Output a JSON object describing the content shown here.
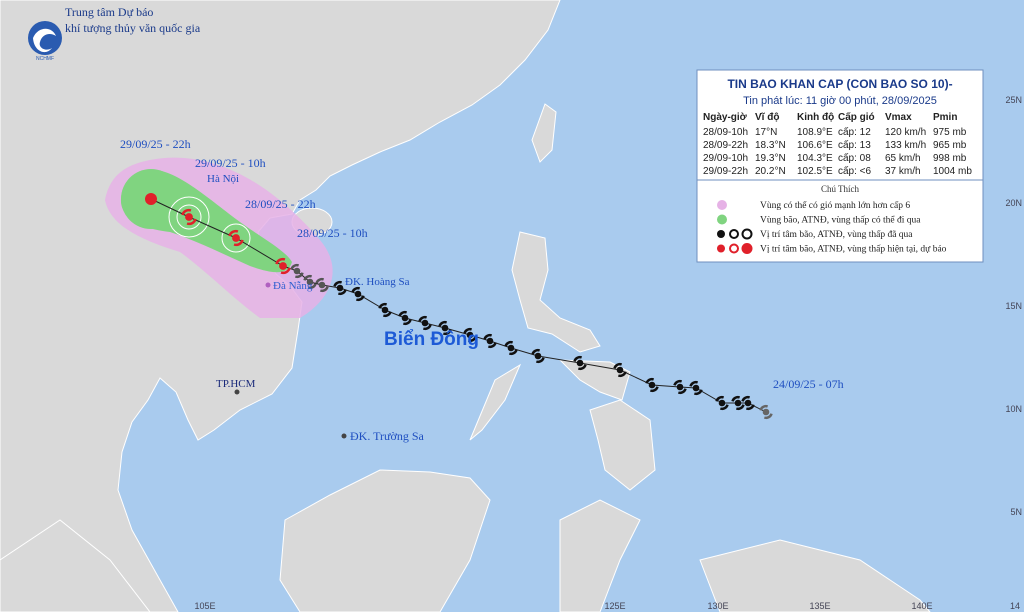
{
  "header": {
    "org_line1": "Trung tâm Dự báo",
    "org_line2": "khí tượng thủy văn quốc gia",
    "logo": "NCHMF"
  },
  "bulletin": {
    "title": "TIN BAO KHAN CAP (CON BAO SO 10)-",
    "issued": "Tin phát lúc: 11 giờ 00 phút, 28/09/2025",
    "columns": [
      "Ngày-giờ",
      "Vĩ độ",
      "Kinh độ",
      "Cấp gió",
      "Vmax",
      "Pmin"
    ],
    "rows": [
      [
        "28/09-10h",
        "17°N",
        "108.9°E",
        "cấp: 12",
        "120 km/h",
        "975 mb"
      ],
      [
        "28/09-22h",
        "18.3°N",
        "106.6°E",
        "cấp: 13",
        "133 km/h",
        "965 mb"
      ],
      [
        "29/09-10h",
        "19.3°N",
        "104.3°E",
        "cấp: 08",
        "65 km/h",
        "998 mb"
      ],
      [
        "29/09-22h",
        "20.2°N",
        "102.5°E",
        "cấp: <6",
        "37 km/h",
        "1004 mb"
      ]
    ]
  },
  "legend": {
    "title": "Chú Thích",
    "items": [
      "Vùng có thể có gió mạnh lớn hơn cấp 6",
      "Vùng bão, ATNĐ, vùng thấp có thể đi qua",
      "Vị trí tâm bão, ATNĐ, vùng thấp đã qua",
      "Vị trí tâm bão, ATNĐ, vùng thấp hiện tại, dự báo"
    ]
  },
  "map_labels": [
    "29/09/25 - 22h",
    "29/09/25 - 10h",
    "Hà Nội",
    "28/09/25 - 22h",
    "28/09/25 - 10h",
    "Đà Nẵng",
    "ĐK. Hoàng Sa",
    "Biển Đông",
    "TP.HCM",
    "ĐK. Trường Sa",
    "24/09/25 - 07h"
  ],
  "lat_labels": [
    "25N",
    "20N",
    "15N",
    "10N",
    "5N"
  ],
  "lon_labels": [
    "105E",
    "125E",
    "130E",
    "135E",
    "140E",
    "14"
  ]
}
